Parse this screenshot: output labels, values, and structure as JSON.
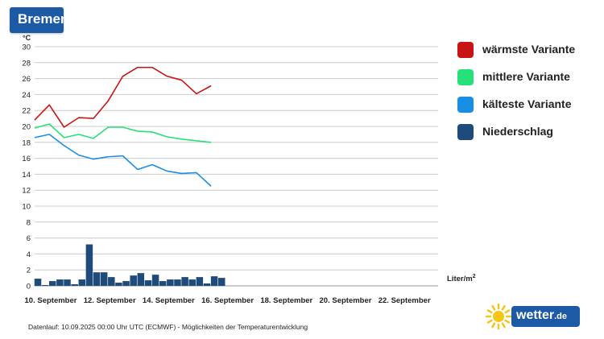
{
  "header": {
    "city": "Bremen"
  },
  "colors": {
    "warm": "#c81414",
    "mid": "#28e07a",
    "cold": "#1a8ee0",
    "rain": "#1f4a7c",
    "grid": "#cccccc",
    "brand": "#1c5aa6",
    "sun": "#f5c518"
  },
  "chart_data": {
    "type": "line",
    "y_unit": "°C",
    "ylim": [
      0,
      30
    ],
    "yticks": [
      0,
      2,
      4,
      6,
      8,
      10,
      12,
      14,
      16,
      18,
      20,
      22,
      24,
      26,
      28,
      30
    ],
    "grid": true,
    "legend_position": "right",
    "x": [
      "2025-09-10",
      "2025-09-10 12h",
      "2025-09-11",
      "2025-09-11 12h",
      "2025-09-12",
      "2025-09-12 12h",
      "2025-09-13",
      "2025-09-13 12h",
      "2025-09-14",
      "2025-09-14 12h",
      "2025-09-15",
      "2025-09-15 12h",
      "2025-09-16",
      "2025-09-16 12h",
      "2025-09-17",
      "2025-09-17 12h",
      "2025-09-18",
      "2025-09-18 12h",
      "2025-09-19",
      "2025-09-19 12h",
      "2025-09-20",
      "2025-09-20 12h",
      "2025-09-21",
      "2025-09-21 12h",
      "2025-09-22",
      "2025-09-22 12h"
    ],
    "x_tick_labels": [
      "10. September",
      "12. September",
      "14. September",
      "16. September",
      "18. September",
      "20. September",
      "22. September"
    ],
    "series": [
      {
        "name": "wärmste Variante",
        "color_key": "warm",
        "x": [
          "2025-09-10",
          "2025-09-11",
          "2025-09-12",
          "2025-09-13",
          "2025-09-14",
          "2025-09-15",
          "2025-09-16",
          "2025-09-17",
          "2025-09-18",
          "2025-09-19",
          "2025-09-20",
          "2025-09-21",
          "2025-09-22"
        ],
        "values": [
          20.8,
          22.7,
          19.9,
          21.1,
          21.0,
          23.2,
          26.3,
          27.4,
          27.4,
          26.3,
          25.8,
          24.1,
          25.1
        ]
      },
      {
        "name": "mittlere Variante",
        "color_key": "mid",
        "x": [
          "2025-09-10",
          "2025-09-11",
          "2025-09-12",
          "2025-09-13",
          "2025-09-14",
          "2025-09-15",
          "2025-09-16",
          "2025-09-17",
          "2025-09-18",
          "2025-09-19",
          "2025-09-20",
          "2025-09-21",
          "2025-09-22"
        ],
        "values": [
          19.8,
          20.3,
          18.6,
          19.0,
          18.5,
          19.9,
          19.9,
          19.4,
          19.3,
          18.7,
          18.4,
          18.2,
          18.0
        ]
      },
      {
        "name": "kälteste Variante",
        "color_key": "cold",
        "x": [
          "2025-09-10",
          "2025-09-11",
          "2025-09-12",
          "2025-09-13",
          "2025-09-14",
          "2025-09-15",
          "2025-09-16",
          "2025-09-17",
          "2025-09-18",
          "2025-09-19",
          "2025-09-20",
          "2025-09-21",
          "2025-09-22"
        ],
        "values": [
          18.6,
          19.0,
          17.6,
          16.4,
          15.9,
          16.2,
          16.3,
          14.6,
          15.2,
          14.4,
          14.1,
          14.2,
          12.5
        ]
      },
      {
        "name": "Niederschlag",
        "color_key": "rain",
        "kind": "bar",
        "unit": "Liter/m²",
        "x": [
          "2025-09-10",
          "2025-09-10 12h",
          "2025-09-11",
          "2025-09-11 12h",
          "2025-09-12",
          "2025-09-12 12h",
          "2025-09-13",
          "2025-09-13 12h",
          "2025-09-14",
          "2025-09-14 12h",
          "2025-09-15",
          "2025-09-15 12h",
          "2025-09-16",
          "2025-09-16 12h",
          "2025-09-17",
          "2025-09-17 12h",
          "2025-09-18",
          "2025-09-18 12h",
          "2025-09-19",
          "2025-09-19 12h",
          "2025-09-20",
          "2025-09-20 12h",
          "2025-09-21",
          "2025-09-21 12h",
          "2025-09-22",
          "2025-09-22 12h"
        ],
        "values": [
          0.9,
          0.1,
          0.6,
          0.8,
          0.8,
          0.2,
          0.8,
          5.2,
          1.7,
          1.7,
          1.1,
          0.4,
          0.6,
          1.3,
          1.6,
          0.7,
          1.4,
          0.6,
          0.8,
          0.8,
          1.1,
          0.8,
          1.1,
          0.3,
          1.2,
          1.0
        ]
      }
    ]
  },
  "footnote": "Datenlauf: 10.09.2025 00:00 Uhr UTC (ECMWF) - Möglichkeiten der Temperaturentwicklung",
  "logo": {
    "name": "wetter",
    "tld": ".de",
    "icon": "sun-icon"
  }
}
